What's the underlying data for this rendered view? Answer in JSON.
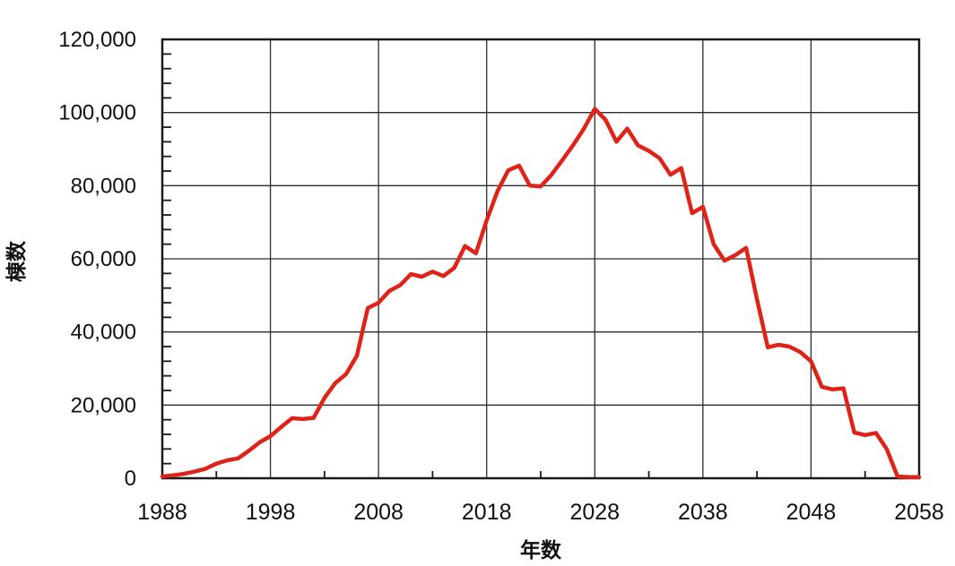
{
  "figure": {
    "background": "#ffffff"
  },
  "chart_data": {
    "type": "line",
    "title": "",
    "xlabel": "年数",
    "ylabel": "棟数",
    "xlim": [
      1988,
      2058
    ],
    "ylim": [
      0,
      120000
    ],
    "grid": true,
    "legend": "none",
    "x_major_step": 10,
    "x_minor_step": 5,
    "y_major_step": 20000,
    "y_minor_step": 4000,
    "x_tick_labels": [
      "1988",
      "1998",
      "2008",
      "2018",
      "2028",
      "2038",
      "2048",
      "2058"
    ],
    "y_tick_labels": [
      "0",
      "20,000",
      "40,000",
      "60,000",
      "80,000",
      "100,000",
      "120,000"
    ],
    "colors": {
      "line": "#e02318",
      "grid": "#2b2b2b",
      "axis": "#1a1a1a",
      "text": "#111111"
    },
    "series": [
      {
        "name": "棟数",
        "x": [
          1988,
          1989,
          1990,
          1991,
          1992,
          1993,
          1994,
          1995,
          1996,
          1997,
          1998,
          1999,
          2000,
          2001,
          2002,
          2003,
          2004,
          2005,
          2006,
          2007,
          2008,
          2009,
          2010,
          2011,
          2012,
          2013,
          2014,
          2015,
          2016,
          2017,
          2018,
          2019,
          2020,
          2021,
          2022,
          2023,
          2024,
          2025,
          2026,
          2027,
          2028,
          2029,
          2030,
          2031,
          2032,
          2033,
          2034,
          2035,
          2036,
          2037,
          2038,
          2039,
          2040,
          2041,
          2042,
          2043,
          2044,
          2045,
          2046,
          2047,
          2048,
          2049,
          2050,
          2051,
          2052,
          2053,
          2054,
          2055,
          2056,
          2057,
          2058
        ],
        "values": [
          500,
          800,
          1200,
          1800,
          2600,
          4000,
          4900,
          5400,
          7500,
          9800,
          11500,
          14000,
          16400,
          16200,
          16500,
          22000,
          26000,
          28500,
          33500,
          46500,
          48000,
          51200,
          52800,
          55800,
          55100,
          56500,
          55300,
          57500,
          63500,
          61500,
          70500,
          78500,
          84200,
          85500,
          80000,
          79800,
          83000,
          87000,
          91100,
          95600,
          101000,
          98000,
          92000,
          95600,
          91000,
          89500,
          87500,
          83000,
          84800,
          72500,
          74200,
          64000,
          59500,
          61000,
          63000,
          49000,
          35800,
          36500,
          36000,
          34500,
          32000,
          25000,
          24300,
          24600,
          12500,
          11800,
          12400,
          8000,
          500,
          300,
          300
        ]
      }
    ]
  }
}
